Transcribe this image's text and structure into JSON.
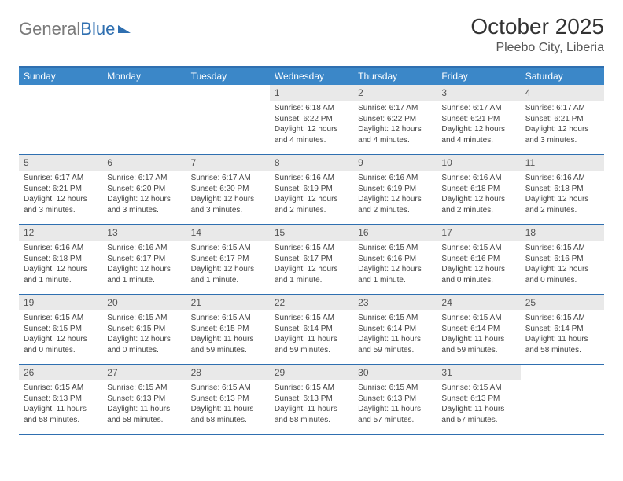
{
  "logo": {
    "text_general": "General",
    "text_blue": "Blue"
  },
  "title": "October 2025",
  "location": "Pleebo City, Liberia",
  "colors": {
    "header_bar": "#3b87c8",
    "border": "#2f6fb0",
    "daynum_bg": "#e9e9e9",
    "text": "#333333"
  },
  "dow": [
    "Sunday",
    "Monday",
    "Tuesday",
    "Wednesday",
    "Thursday",
    "Friday",
    "Saturday"
  ],
  "weeks": [
    [
      {
        "num": "",
        "sunrise": "",
        "sunset": "",
        "daylight": ""
      },
      {
        "num": "",
        "sunrise": "",
        "sunset": "",
        "daylight": ""
      },
      {
        "num": "",
        "sunrise": "",
        "sunset": "",
        "daylight": ""
      },
      {
        "num": "1",
        "sunrise": "Sunrise: 6:18 AM",
        "sunset": "Sunset: 6:22 PM",
        "daylight": "Daylight: 12 hours and 4 minutes."
      },
      {
        "num": "2",
        "sunrise": "Sunrise: 6:17 AM",
        "sunset": "Sunset: 6:22 PM",
        "daylight": "Daylight: 12 hours and 4 minutes."
      },
      {
        "num": "3",
        "sunrise": "Sunrise: 6:17 AM",
        "sunset": "Sunset: 6:21 PM",
        "daylight": "Daylight: 12 hours and 4 minutes."
      },
      {
        "num": "4",
        "sunrise": "Sunrise: 6:17 AM",
        "sunset": "Sunset: 6:21 PM",
        "daylight": "Daylight: 12 hours and 3 minutes."
      }
    ],
    [
      {
        "num": "5",
        "sunrise": "Sunrise: 6:17 AM",
        "sunset": "Sunset: 6:21 PM",
        "daylight": "Daylight: 12 hours and 3 minutes."
      },
      {
        "num": "6",
        "sunrise": "Sunrise: 6:17 AM",
        "sunset": "Sunset: 6:20 PM",
        "daylight": "Daylight: 12 hours and 3 minutes."
      },
      {
        "num": "7",
        "sunrise": "Sunrise: 6:17 AM",
        "sunset": "Sunset: 6:20 PM",
        "daylight": "Daylight: 12 hours and 3 minutes."
      },
      {
        "num": "8",
        "sunrise": "Sunrise: 6:16 AM",
        "sunset": "Sunset: 6:19 PM",
        "daylight": "Daylight: 12 hours and 2 minutes."
      },
      {
        "num": "9",
        "sunrise": "Sunrise: 6:16 AM",
        "sunset": "Sunset: 6:19 PM",
        "daylight": "Daylight: 12 hours and 2 minutes."
      },
      {
        "num": "10",
        "sunrise": "Sunrise: 6:16 AM",
        "sunset": "Sunset: 6:18 PM",
        "daylight": "Daylight: 12 hours and 2 minutes."
      },
      {
        "num": "11",
        "sunrise": "Sunrise: 6:16 AM",
        "sunset": "Sunset: 6:18 PM",
        "daylight": "Daylight: 12 hours and 2 minutes."
      }
    ],
    [
      {
        "num": "12",
        "sunrise": "Sunrise: 6:16 AM",
        "sunset": "Sunset: 6:18 PM",
        "daylight": "Daylight: 12 hours and 1 minute."
      },
      {
        "num": "13",
        "sunrise": "Sunrise: 6:16 AM",
        "sunset": "Sunset: 6:17 PM",
        "daylight": "Daylight: 12 hours and 1 minute."
      },
      {
        "num": "14",
        "sunrise": "Sunrise: 6:15 AM",
        "sunset": "Sunset: 6:17 PM",
        "daylight": "Daylight: 12 hours and 1 minute."
      },
      {
        "num": "15",
        "sunrise": "Sunrise: 6:15 AM",
        "sunset": "Sunset: 6:17 PM",
        "daylight": "Daylight: 12 hours and 1 minute."
      },
      {
        "num": "16",
        "sunrise": "Sunrise: 6:15 AM",
        "sunset": "Sunset: 6:16 PM",
        "daylight": "Daylight: 12 hours and 1 minute."
      },
      {
        "num": "17",
        "sunrise": "Sunrise: 6:15 AM",
        "sunset": "Sunset: 6:16 PM",
        "daylight": "Daylight: 12 hours and 0 minutes."
      },
      {
        "num": "18",
        "sunrise": "Sunrise: 6:15 AM",
        "sunset": "Sunset: 6:16 PM",
        "daylight": "Daylight: 12 hours and 0 minutes."
      }
    ],
    [
      {
        "num": "19",
        "sunrise": "Sunrise: 6:15 AM",
        "sunset": "Sunset: 6:15 PM",
        "daylight": "Daylight: 12 hours and 0 minutes."
      },
      {
        "num": "20",
        "sunrise": "Sunrise: 6:15 AM",
        "sunset": "Sunset: 6:15 PM",
        "daylight": "Daylight: 12 hours and 0 minutes."
      },
      {
        "num": "21",
        "sunrise": "Sunrise: 6:15 AM",
        "sunset": "Sunset: 6:15 PM",
        "daylight": "Daylight: 11 hours and 59 minutes."
      },
      {
        "num": "22",
        "sunrise": "Sunrise: 6:15 AM",
        "sunset": "Sunset: 6:14 PM",
        "daylight": "Daylight: 11 hours and 59 minutes."
      },
      {
        "num": "23",
        "sunrise": "Sunrise: 6:15 AM",
        "sunset": "Sunset: 6:14 PM",
        "daylight": "Daylight: 11 hours and 59 minutes."
      },
      {
        "num": "24",
        "sunrise": "Sunrise: 6:15 AM",
        "sunset": "Sunset: 6:14 PM",
        "daylight": "Daylight: 11 hours and 59 minutes."
      },
      {
        "num": "25",
        "sunrise": "Sunrise: 6:15 AM",
        "sunset": "Sunset: 6:14 PM",
        "daylight": "Daylight: 11 hours and 58 minutes."
      }
    ],
    [
      {
        "num": "26",
        "sunrise": "Sunrise: 6:15 AM",
        "sunset": "Sunset: 6:13 PM",
        "daylight": "Daylight: 11 hours and 58 minutes."
      },
      {
        "num": "27",
        "sunrise": "Sunrise: 6:15 AM",
        "sunset": "Sunset: 6:13 PM",
        "daylight": "Daylight: 11 hours and 58 minutes."
      },
      {
        "num": "28",
        "sunrise": "Sunrise: 6:15 AM",
        "sunset": "Sunset: 6:13 PM",
        "daylight": "Daylight: 11 hours and 58 minutes."
      },
      {
        "num": "29",
        "sunrise": "Sunrise: 6:15 AM",
        "sunset": "Sunset: 6:13 PM",
        "daylight": "Daylight: 11 hours and 58 minutes."
      },
      {
        "num": "30",
        "sunrise": "Sunrise: 6:15 AM",
        "sunset": "Sunset: 6:13 PM",
        "daylight": "Daylight: 11 hours and 57 minutes."
      },
      {
        "num": "31",
        "sunrise": "Sunrise: 6:15 AM",
        "sunset": "Sunset: 6:13 PM",
        "daylight": "Daylight: 11 hours and 57 minutes."
      },
      {
        "num": "",
        "sunrise": "",
        "sunset": "",
        "daylight": ""
      }
    ]
  ]
}
